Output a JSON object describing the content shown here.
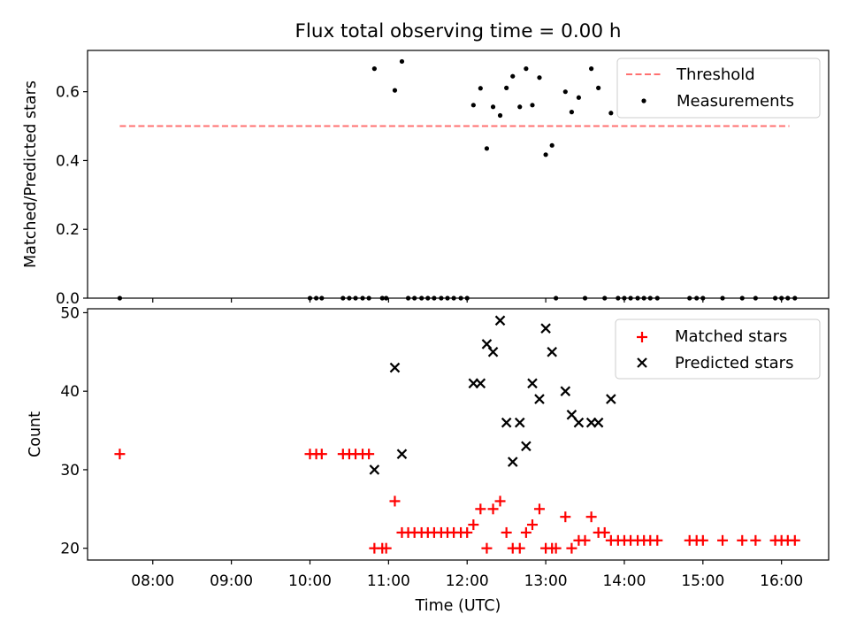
{
  "chart_data": [
    {
      "type": "scatter",
      "title": "Flux total observing time = 0.00 h",
      "xlabel": "",
      "ylabel": "Matched/Predicted stars",
      "xlim": [
        7.17,
        16.6
      ],
      "ylim": [
        0.0,
        0.72
      ],
      "yticks": [
        0.0,
        0.2,
        0.4,
        0.6
      ],
      "ytick_labels": [
        "0.0",
        "0.2",
        "0.4",
        "0.6"
      ],
      "legend_position": "top-right",
      "threshold": {
        "name": "Threshold",
        "value": 0.5,
        "x": [
          7.58,
          16.1
        ],
        "color": "#ff7070",
        "style": "dashed"
      },
      "series": [
        {
          "name": "Measurements",
          "color": "#000000",
          "marker": "dot",
          "x": [
            7.58,
            10.0,
            10.08,
            10.15,
            10.42,
            10.5,
            10.58,
            10.67,
            10.75,
            10.82,
            10.92,
            10.97,
            11.08,
            11.17,
            11.25,
            11.33,
            11.42,
            11.5,
            11.58,
            11.67,
            11.75,
            11.83,
            11.92,
            12.0,
            12.08,
            12.17,
            12.25,
            12.33,
            12.42,
            12.5,
            12.58,
            12.67,
            12.75,
            12.83,
            12.92,
            13.0,
            13.08,
            13.13,
            13.25,
            13.33,
            13.42,
            13.5,
            13.58,
            13.67,
            13.75,
            13.83,
            13.92,
            14.0,
            14.08,
            14.17,
            14.25,
            14.33,
            14.42,
            14.83,
            14.92,
            15.0,
            15.25,
            15.5,
            15.67,
            15.92,
            16.0,
            16.08,
            16.17
          ],
          "y": [
            0.0,
            0.0,
            0.0,
            0.0,
            0.0,
            0.0,
            0.0,
            0.0,
            0.0,
            0.667,
            0.0,
            0.0,
            0.604,
            0.688,
            0.0,
            0.0,
            0.0,
            0.0,
            0.0,
            0.0,
            0.0,
            0.0,
            0.0,
            0.0,
            0.561,
            0.61,
            0.435,
            0.556,
            0.531,
            0.611,
            0.645,
            0.556,
            0.667,
            0.561,
            0.641,
            0.417,
            0.444,
            0.0,
            0.6,
            0.541,
            0.583,
            0.0,
            0.667,
            0.611,
            0.0,
            0.538,
            0.0,
            0.0,
            0.0,
            0.0,
            0.0,
            0.0,
            0.0,
            0.0,
            0.0,
            0.0,
            0.0,
            0.0,
            0.0,
            0.0,
            0.0,
            0.0,
            0.0
          ]
        }
      ]
    },
    {
      "type": "scatter",
      "title": "",
      "xlabel": "Time (UTC)",
      "ylabel": "Count",
      "xlim": [
        7.17,
        16.6
      ],
      "ylim": [
        18.5,
        50.5
      ],
      "xticks": [
        8,
        9,
        10,
        11,
        12,
        13,
        14,
        15,
        16
      ],
      "xtick_labels": [
        "08:00",
        "09:00",
        "10:00",
        "11:00",
        "12:00",
        "13:00",
        "14:00",
        "15:00",
        "16:00"
      ],
      "yticks": [
        20,
        30,
        40,
        50
      ],
      "ytick_labels": [
        "20",
        "30",
        "40",
        "50"
      ],
      "legend_position": "top-right",
      "series": [
        {
          "name": "Matched stars",
          "color": "#ff0000",
          "marker": "plus",
          "x": [
            7.58,
            10.0,
            10.08,
            10.15,
            10.42,
            10.5,
            10.58,
            10.67,
            10.75,
            10.82,
            10.92,
            10.97,
            11.08,
            11.17,
            11.25,
            11.33,
            11.42,
            11.5,
            11.58,
            11.67,
            11.75,
            11.83,
            11.92,
            12.0,
            12.08,
            12.17,
            12.25,
            12.33,
            12.42,
            12.5,
            12.58,
            12.67,
            12.75,
            12.83,
            12.92,
            13.0,
            13.08,
            13.13,
            13.25,
            13.33,
            13.42,
            13.5,
            13.58,
            13.67,
            13.75,
            13.83,
            13.92,
            14.0,
            14.08,
            14.17,
            14.25,
            14.33,
            14.42,
            14.83,
            14.92,
            15.0,
            15.25,
            15.5,
            15.67,
            15.92,
            16.0,
            16.08,
            16.17
          ],
          "y": [
            32,
            32,
            32,
            32,
            32,
            32,
            32,
            32,
            32,
            20,
            20,
            20,
            26,
            22,
            22,
            22,
            22,
            22,
            22,
            22,
            22,
            22,
            22,
            22,
            23,
            25,
            20,
            25,
            26,
            22,
            20,
            20,
            22,
            23,
            25,
            20,
            20,
            20,
            24,
            20,
            21,
            21,
            24,
            22,
            22,
            21,
            21,
            21,
            21,
            21,
            21,
            21,
            21,
            21,
            21,
            21,
            21,
            21,
            21,
            21,
            21,
            21,
            21
          ]
        },
        {
          "name": "Predicted stars",
          "color": "#000000",
          "marker": "x",
          "x": [
            10.82,
            11.08,
            11.17,
            12.08,
            12.17,
            12.25,
            12.33,
            12.42,
            12.5,
            12.58,
            12.67,
            12.75,
            12.83,
            12.92,
            13.0,
            13.08,
            13.25,
            13.33,
            13.42,
            13.58,
            13.67,
            13.83
          ],
          "y": [
            30,
            43,
            32,
            41,
            41,
            46,
            45,
            49,
            36,
            31,
            36,
            33,
            41,
            39,
            48,
            45,
            40,
            37,
            36,
            36,
            36,
            39
          ]
        }
      ]
    }
  ]
}
